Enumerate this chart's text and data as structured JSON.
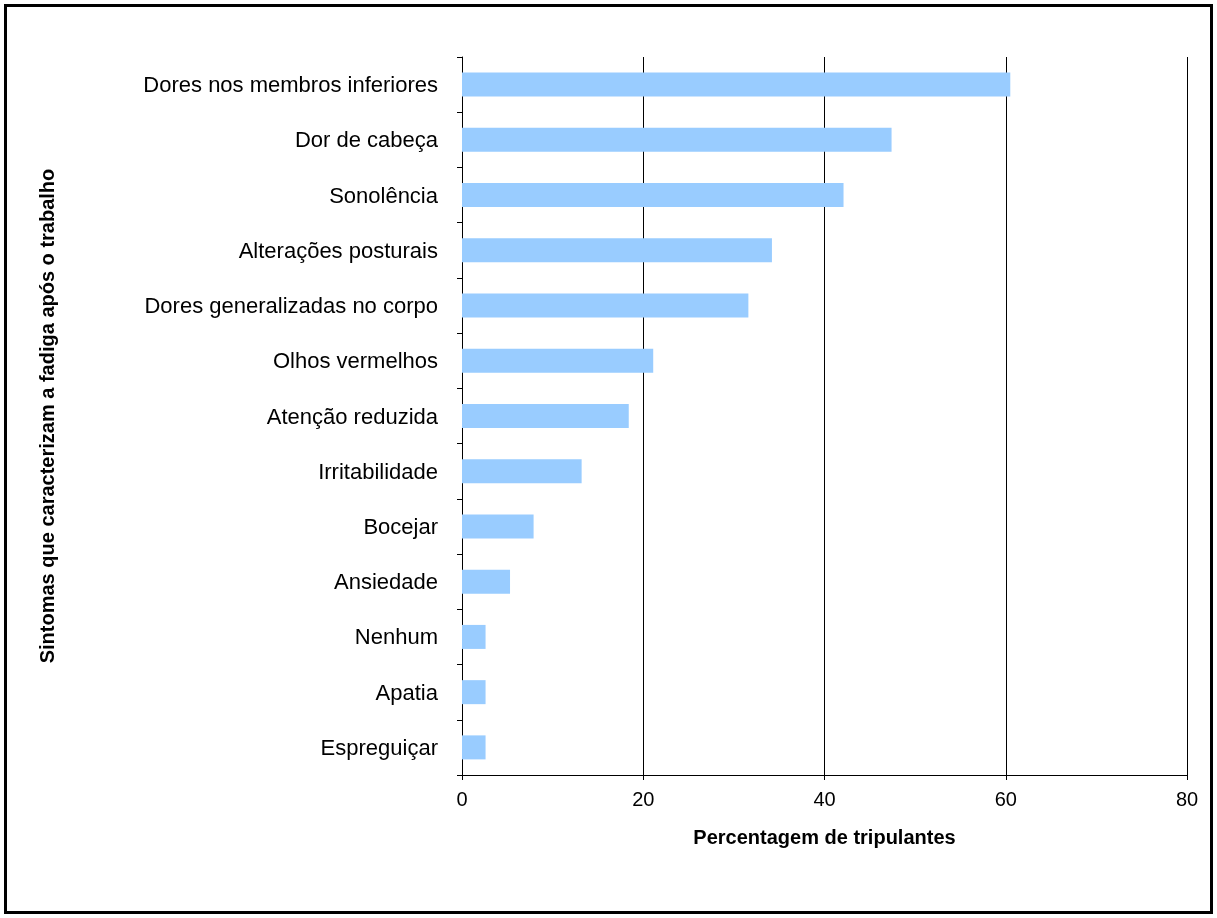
{
  "chart_data": {
    "type": "bar",
    "orientation": "horizontal",
    "xlabel": "Percentagem de tripulantes",
    "ylabel": "Sintomas que caracterizam a fadiga após o trabalho",
    "categories": [
      "Dores nos membros inferiores",
      "Dor de cabeça",
      "Sonolência",
      "Alterações posturais",
      "Dores generalizadas no corpo",
      "Olhos vermelhos",
      "Atenção reduzida",
      "Irritabilidade",
      "Bocejar",
      "Ansiedade",
      "Nenhum",
      "Apatia",
      "Espreguiçar"
    ],
    "values": [
      60.5,
      47.4,
      42.1,
      34.2,
      31.6,
      21.1,
      18.4,
      13.2,
      7.9,
      5.3,
      2.6,
      2.6,
      2.6
    ],
    "color": "#99ccff",
    "xlim": [
      0,
      80
    ],
    "xticks": [
      0,
      20,
      40,
      60,
      80
    ],
    "grid": "x"
  }
}
